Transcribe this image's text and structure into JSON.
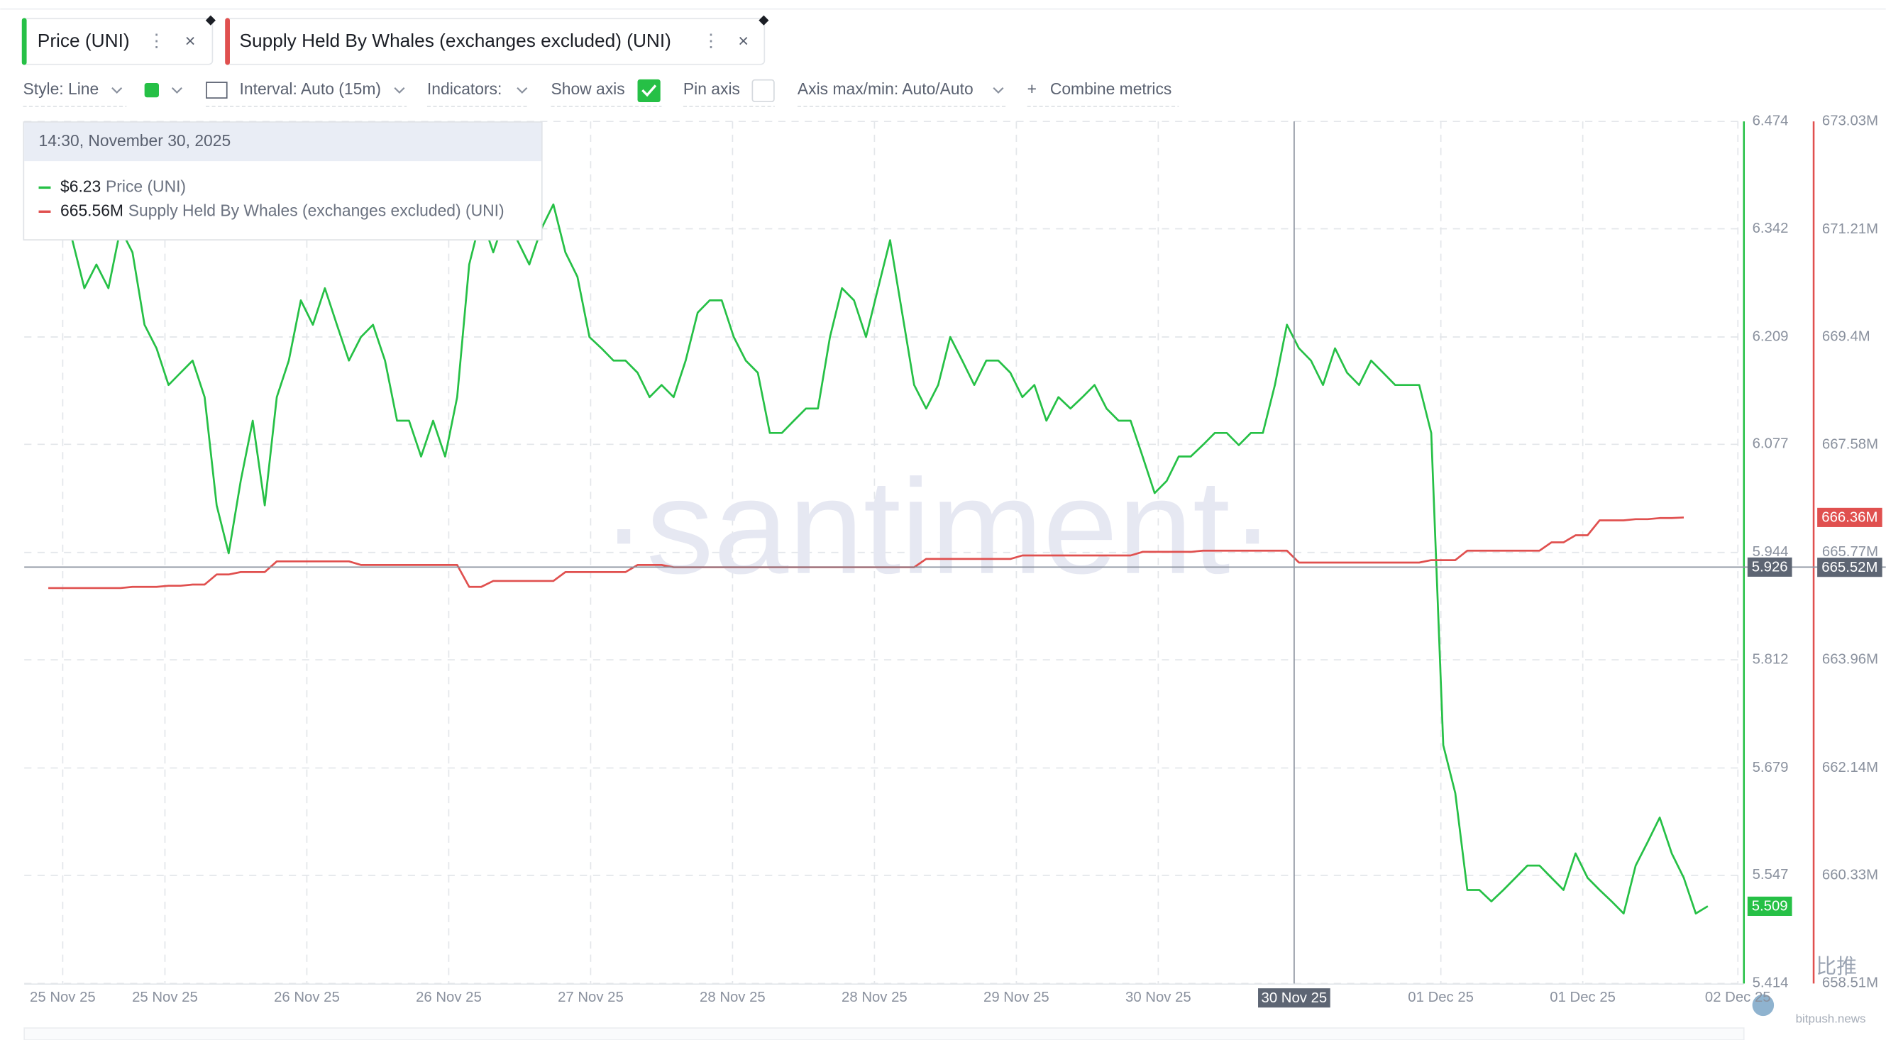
{
  "toolbar": {
    "tabs": [
      "Price (UNI)",
      "Supply Held By Whales (exchanges excluded) (UNI)"
    ],
    "style": "Style: Line",
    "interval": "Interval: Auto (15m)",
    "indicators": "Indicators:",
    "show_axis": "Show axis",
    "pin_axis": "Pin axis",
    "axis_minmax": "Axis max/min: Auto/Auto",
    "combine": "Combine metrics"
  },
  "watermark": "·santiment·",
  "source": {
    "logo": "比推",
    "site": "bitpush.news"
  },
  "chart_data": {
    "type": "line",
    "xlim": [
      0,
      143
    ],
    "xticks": [
      {
        "value": 3.2,
        "label": "25 Nov 25"
      },
      {
        "value": 11.7,
        "label": "25 Nov 25"
      },
      {
        "value": 23.5,
        "label": "26 Nov 25"
      },
      {
        "value": 35.3,
        "label": "26 Nov 25"
      },
      {
        "value": 47.1,
        "label": "27 Nov 25"
      },
      {
        "value": 58.9,
        "label": "28 Nov 25"
      },
      {
        "value": 70.7,
        "label": "28 Nov 25"
      },
      {
        "value": 82.5,
        "label": "29 Nov 25"
      },
      {
        "value": 94.3,
        "label": "30 Nov 25"
      },
      {
        "value": 117.8,
        "label": "01 Dec 25"
      },
      {
        "value": 129.6,
        "label": "01 Dec 25"
      },
      {
        "value": 142.5,
        "label": "02 Dec 25"
      }
    ],
    "ylim": [
      5.414,
      6.474
    ],
    "yticks": [
      6.474,
      6.342,
      6.209,
      6.077,
      5.944,
      5.812,
      5.679,
      5.547,
      5.414
    ],
    "y2lim": [
      658.51,
      673.03
    ],
    "y2ticks": [
      {
        "value": 673.03,
        "label": "673.03M"
      },
      {
        "value": 671.21,
        "label": "671.21M"
      },
      {
        "value": 669.4,
        "label": "669.4M"
      },
      {
        "value": 667.58,
        "label": "667.58M"
      },
      {
        "value": 665.77,
        "label": "665.77M"
      },
      {
        "value": 663.96,
        "label": "663.96M"
      },
      {
        "value": 662.14,
        "label": "662.14M"
      },
      {
        "value": 660.33,
        "label": "660.33M"
      },
      {
        "value": 658.51,
        "label": "658.51M"
      }
    ],
    "grid": true,
    "series": [
      {
        "name": "Price (UNI)",
        "color": "#26c046",
        "values": [
          6.402,
          6.387,
          6.372,
          6.357,
          6.328,
          6.269,
          6.298,
          6.269,
          6.342,
          6.313,
          6.224,
          6.195,
          6.15,
          6.165,
          6.18,
          6.135,
          6.002,
          5.943,
          6.032,
          6.106,
          6.002,
          6.135,
          6.18,
          6.254,
          6.224,
          6.269,
          6.224,
          6.18,
          6.209,
          6.224,
          6.18,
          6.106,
          6.106,
          6.062,
          6.106,
          6.062,
          6.135,
          6.298,
          6.357,
          6.313,
          6.357,
          6.328,
          6.298,
          6.342,
          6.372,
          6.313,
          6.283,
          6.209,
          6.195,
          6.18,
          6.18,
          6.165,
          6.135,
          6.15,
          6.135,
          6.18,
          6.239,
          6.254,
          6.254,
          6.209,
          6.18,
          6.165,
          6.091,
          6.091,
          6.106,
          6.121,
          6.121,
          6.209,
          6.269,
          6.254,
          6.209,
          6.269,
          6.328,
          6.239,
          6.15,
          6.121,
          6.15,
          6.209,
          6.18,
          6.15,
          6.18,
          6.18,
          6.165,
          6.135,
          6.15,
          6.106,
          6.135,
          6.121,
          6.135,
          6.15,
          6.121,
          6.106,
          6.106,
          6.062,
          6.017,
          6.032,
          6.062,
          6.062,
          6.076,
          6.091,
          6.091,
          6.076,
          6.091,
          6.091,
          6.15,
          6.224,
          6.195,
          6.18,
          6.15,
          6.195,
          6.165,
          6.15,
          6.18,
          6.165,
          6.15,
          6.15,
          6.15,
          6.091,
          5.707,
          5.648,
          5.529,
          5.529,
          5.515,
          5.529,
          5.544,
          5.559,
          5.559,
          5.544,
          5.529,
          5.574,
          5.544,
          5.529,
          5.515,
          5.5,
          5.559,
          5.588,
          5.618,
          5.574,
          5.544,
          5.5,
          5.509
        ]
      },
      {
        "name": "Supply Held By Whales (exchanges excluded) (UNI)",
        "color": "#e0504f",
        "axis": "y2",
        "badge": {
          "value": 666.36,
          "label": "666.36M"
        },
        "values": [
          null,
          null,
          665.17,
          665.17,
          665.17,
          665.17,
          665.17,
          665.17,
          665.17,
          665.19,
          665.19,
          665.19,
          665.21,
          665.21,
          665.23,
          665.23,
          665.4,
          665.4,
          665.44,
          665.44,
          665.44,
          665.62,
          665.62,
          665.62,
          665.62,
          665.62,
          665.62,
          665.62,
          665.56,
          665.56,
          665.56,
          665.56,
          665.56,
          665.56,
          665.56,
          665.56,
          665.56,
          665.19,
          665.19,
          665.29,
          665.29,
          665.29,
          665.29,
          665.29,
          665.29,
          665.44,
          665.44,
          665.44,
          665.44,
          665.44,
          665.44,
          665.56,
          665.56,
          665.56,
          665.52,
          665.52,
          665.52,
          665.52,
          665.52,
          665.52,
          665.52,
          665.52,
          665.52,
          665.52,
          665.52,
          665.52,
          665.52,
          665.52,
          665.52,
          665.52,
          665.52,
          665.52,
          665.52,
          665.52,
          665.52,
          665.66,
          665.66,
          665.66,
          665.66,
          665.66,
          665.66,
          665.66,
          665.66,
          665.72,
          665.72,
          665.72,
          665.72,
          665.72,
          665.72,
          665.72,
          665.72,
          665.72,
          665.72,
          665.78,
          665.78,
          665.78,
          665.78,
          665.78,
          665.8,
          665.8,
          665.8,
          665.8,
          665.8,
          665.8,
          665.8,
          665.8,
          665.6,
          665.6,
          665.6,
          665.6,
          665.6,
          665.6,
          665.6,
          665.6,
          665.6,
          665.6,
          665.6,
          665.64,
          665.64,
          665.64,
          665.8,
          665.8,
          665.8,
          665.8,
          665.8,
          665.8,
          665.8,
          665.94,
          665.94,
          666.06,
          666.06,
          666.31,
          666.31,
          666.31,
          666.33,
          666.33,
          666.35,
          666.35,
          666.36,
          null,
          null
        ]
      }
    ],
    "crosshair": {
      "x": 105.6,
      "x_label": "30 Nov 25",
      "y": 5.926,
      "y2": {
        "value": 665.52,
        "label": "665.52M"
      }
    },
    "tooltip": {
      "title": "14:30, November 30, 2025",
      "items": [
        {
          "value_label": "$6.23",
          "name": "Price (UNI)"
        },
        {
          "value_label": "665.56M",
          "name": "Supply Held By Whales (exchanges excluded) (UNI)"
        }
      ]
    }
  }
}
